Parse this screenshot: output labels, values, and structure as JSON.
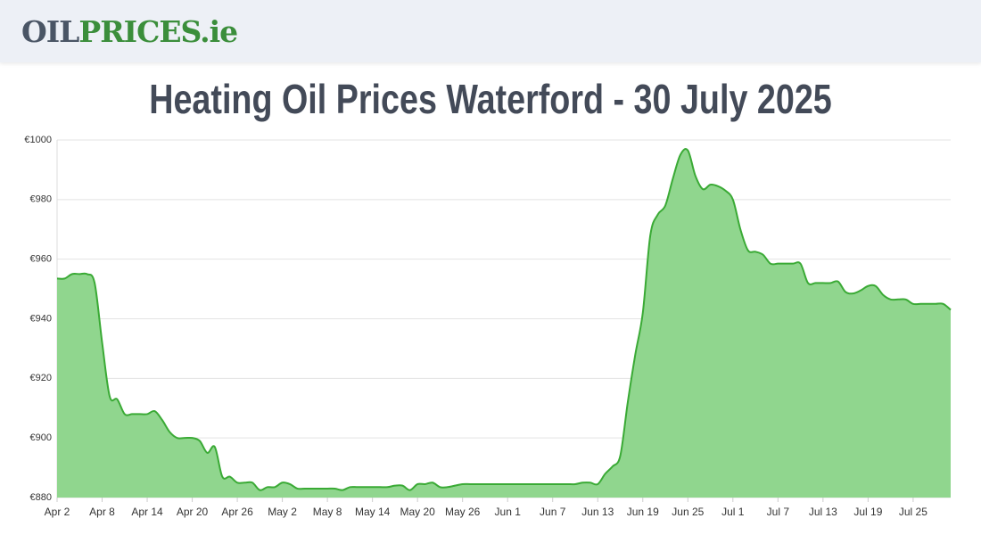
{
  "header": {
    "logo_left": "OIL",
    "logo_right": "PRICES.ie"
  },
  "chart_data": {
    "type": "area",
    "title": "Heating Oil Prices Waterford - 30 July 2025",
    "categories": [
      "Apr 2",
      null,
      null,
      null,
      null,
      null,
      "Apr 8",
      null,
      null,
      null,
      null,
      null,
      "Apr 14",
      null,
      null,
      null,
      null,
      null,
      "Apr 20",
      null,
      null,
      null,
      null,
      null,
      "Apr 26",
      null,
      null,
      null,
      null,
      null,
      "May 2",
      null,
      null,
      null,
      null,
      null,
      "May 8",
      null,
      null,
      null,
      null,
      null,
      "May 14",
      null,
      null,
      null,
      null,
      null,
      "May 20",
      null,
      null,
      null,
      null,
      null,
      "May 26",
      null,
      null,
      null,
      null,
      null,
      "Jun 1",
      null,
      null,
      null,
      null,
      null,
      "Jun 7",
      null,
      null,
      null,
      null,
      null,
      "Jun 13",
      null,
      null,
      null,
      null,
      null,
      "Jun 19",
      null,
      null,
      null,
      null,
      null,
      "Jun 25",
      null,
      null,
      null,
      null,
      null,
      "Jul 1",
      null,
      null,
      null,
      null,
      null,
      "Jul 7",
      null,
      null,
      null,
      null,
      null,
      "Jul 13",
      null,
      null,
      null,
      null,
      null,
      "Jul 19",
      null,
      null,
      null,
      null,
      null,
      "Jul 25",
      null,
      null,
      null,
      null,
      null
    ],
    "values": [
      953.5,
      953.5,
      955,
      955,
      955,
      952,
      932,
      914,
      913,
      908,
      908,
      908,
      908,
      909,
      906,
      902,
      900,
      900,
      900,
      899,
      895,
      897,
      887,
      887,
      885,
      885,
      885,
      882.5,
      883.5,
      883.5,
      885,
      884.5,
      883,
      883,
      883,
      883,
      883,
      883,
      882.5,
      883.5,
      883.5,
      883.5,
      883.5,
      883.5,
      883.5,
      884,
      884,
      882.5,
      884.5,
      884.5,
      885,
      883.5,
      883.5,
      884,
      884.5,
      884.5,
      884.5,
      884.5,
      884.5,
      884.5,
      884.5,
      884.5,
      884.5,
      884.5,
      884.5,
      884.5,
      884.5,
      884.5,
      884.5,
      884.5,
      885,
      885,
      884.5,
      888,
      890.5,
      894,
      912,
      928,
      942,
      968,
      975,
      978,
      987,
      995,
      996.5,
      988,
      983.5,
      985,
      984.5,
      983,
      980,
      970,
      963,
      962.5,
      961.5,
      958.5,
      958.5,
      958.5,
      958.5,
      958.5,
      952,
      952,
      952,
      952,
      952.5,
      949,
      948.5,
      949.5,
      951,
      951,
      948,
      946.5,
      946.5,
      946.5,
      945,
      945,
      945,
      945,
      945,
      943
    ],
    "color": "#3aaa35",
    "fill": "#90d68e",
    "ylim": [
      880,
      1000
    ],
    "yticks": [
      {
        "value": 880,
        "label": "€880"
      },
      {
        "value": 900,
        "label": "€900"
      },
      {
        "value": 920,
        "label": "€920"
      },
      {
        "value": 940,
        "label": "€940"
      },
      {
        "value": 960,
        "label": "€960"
      },
      {
        "value": 980,
        "label": "€980"
      },
      {
        "value": 1000,
        "label": "€1000"
      }
    ],
    "grid": true
  }
}
